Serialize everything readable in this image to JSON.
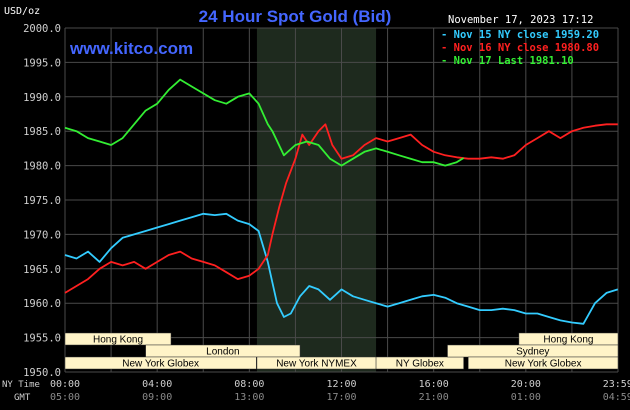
{
  "header": {
    "unit": "USD/oz",
    "title": "24 Hour Spot Gold (Bid)",
    "date": "November 17, 2023 17:12",
    "watermark": "www.kitco.com"
  },
  "axis_labels": {
    "ny_time": "NY Time",
    "gmt": "GMT"
  },
  "sessions": [
    {
      "label": "Hong Kong",
      "row": 0
    },
    {
      "label": "London",
      "row": 1
    },
    {
      "label": "New York Globex",
      "row": 2
    },
    {
      "label": "New York NYMEX",
      "row": 2
    },
    {
      "label": "NY Globex",
      "row": 2
    },
    {
      "label": "Hong Kong",
      "row": 0
    },
    {
      "label": "Sydney",
      "row": 1
    },
    {
      "label": "New York Globex",
      "row": 2
    }
  ],
  "colors": {
    "background": "#000000",
    "grid": "#4a4a4a",
    "nymex_shade": "#1e2a1e",
    "title": "#4466ff",
    "text": "#ffffff",
    "axis_text": "#cfcfcf",
    "session_box": "#fff4c8",
    "session_text": "#000000"
  },
  "chart_data": {
    "type": "line",
    "title": "24 Hour Spot Gold (Bid)",
    "ylabel": "USD/oz",
    "ylim": [
      1950,
      2000
    ],
    "yticks": [
      "2000.0",
      "1995.0",
      "1990.0",
      "1985.0",
      "1980.0",
      "1975.0",
      "1970.0",
      "1965.0",
      "1960.0",
      "1955.0",
      "1950.0"
    ],
    "xlim_hours": [
      0,
      24
    ],
    "xticks_ny": [
      "00:00",
      "04:00",
      "08:00",
      "12:00",
      "16:00",
      "20:00",
      "23:59"
    ],
    "xticks_gmt": [
      "05:00",
      "09:00",
      "13:00",
      "17:00",
      "21:00",
      "01:00",
      "04:59"
    ],
    "grid": true,
    "legend_position": "top-right",
    "series": [
      {
        "name": "Nov 15 NY close 1959.20",
        "color": "#33ccff",
        "x": [
          0,
          0.5,
          1.0,
          1.5,
          2.0,
          2.5,
          3.0,
          3.5,
          4.0,
          4.5,
          5.0,
          5.5,
          6.0,
          6.5,
          7.0,
          7.5,
          8.0,
          8.4,
          8.8,
          9.0,
          9.2,
          9.5,
          9.8,
          10.2,
          10.6,
          11.0,
          11.5,
          12.0,
          12.5,
          13.0,
          13.5,
          14.0,
          14.5,
          15.0,
          15.5,
          16.0,
          16.5,
          17.0,
          17.5,
          18.0,
          18.5,
          19.0,
          19.5,
          20.0,
          20.5,
          21.0,
          21.5,
          22.0,
          22.5,
          23.0,
          23.5,
          23.99
        ],
        "y": [
          1967.0,
          1966.5,
          1967.5,
          1966.0,
          1968.0,
          1969.5,
          1970.0,
          1970.5,
          1971.0,
          1971.5,
          1972.0,
          1972.5,
          1973.0,
          1972.8,
          1973.0,
          1972.0,
          1971.5,
          1970.5,
          1966.0,
          1963.0,
          1960.0,
          1958.0,
          1958.5,
          1961.0,
          1962.5,
          1962.0,
          1960.5,
          1962.0,
          1961.0,
          1960.5,
          1960.0,
          1959.5,
          1960.0,
          1960.5,
          1961.0,
          1961.2,
          1960.8,
          1960.0,
          1959.5,
          1959.0,
          1959.0,
          1959.2,
          1959.0,
          1958.5,
          1958.5,
          1958.0,
          1957.5,
          1957.2,
          1957.0,
          1960.0,
          1961.5,
          1962.0
        ]
      },
      {
        "name": "Nov 16 NY close 1980.80",
        "color": "#ff2020",
        "x": [
          0,
          0.5,
          1.0,
          1.5,
          2.0,
          2.5,
          3.0,
          3.5,
          4.0,
          4.5,
          5.0,
          5.5,
          6.0,
          6.5,
          7.0,
          7.5,
          8.0,
          8.4,
          8.8,
          9.0,
          9.3,
          9.6,
          10.0,
          10.3,
          10.6,
          11.0,
          11.3,
          11.6,
          12.0,
          12.5,
          13.0,
          13.5,
          14.0,
          14.5,
          15.0,
          15.5,
          16.0,
          16.5,
          17.0,
          17.5,
          18.0,
          18.5,
          19.0,
          19.5,
          20.0,
          20.5,
          21.0,
          21.5,
          22.0,
          22.5,
          23.0,
          23.5,
          23.99
        ],
        "y": [
          1961.5,
          1962.5,
          1963.5,
          1965.0,
          1966.0,
          1965.5,
          1966.0,
          1965.0,
          1966.0,
          1967.0,
          1967.5,
          1966.5,
          1966.0,
          1965.5,
          1964.5,
          1963.5,
          1964.0,
          1965.0,
          1967.0,
          1970.0,
          1974.0,
          1977.5,
          1981.0,
          1984.5,
          1983.0,
          1985.0,
          1986.0,
          1983.0,
          1981.0,
          1981.5,
          1983.0,
          1984.0,
          1983.5,
          1984.0,
          1984.5,
          1983.0,
          1982.0,
          1981.5,
          1981.2,
          1981.0,
          1981.0,
          1981.2,
          1981.0,
          1981.5,
          1983.0,
          1984.0,
          1985.0,
          1984.0,
          1985.0,
          1985.5,
          1985.8,
          1986.0,
          1986.0
        ]
      },
      {
        "name": "Nov 17 Last 1981.10",
        "color": "#33ee33",
        "x": [
          0,
          0.5,
          1.0,
          1.5,
          2.0,
          2.5,
          3.0,
          3.5,
          4.0,
          4.5,
          5.0,
          5.5,
          6.0,
          6.5,
          7.0,
          7.5,
          8.0,
          8.4,
          8.8,
          9.0,
          9.5,
          10.0,
          10.5,
          11.0,
          11.5,
          12.0,
          12.5,
          13.0,
          13.5,
          14.0,
          14.5,
          15.0,
          15.5,
          16.0,
          16.5,
          17.0,
          17.3
        ],
        "y": [
          1985.5,
          1985.0,
          1984.0,
          1983.5,
          1983.0,
          1984.0,
          1986.0,
          1988.0,
          1989.0,
          1991.0,
          1992.5,
          1991.5,
          1990.5,
          1989.5,
          1989.0,
          1990.0,
          1990.5,
          1989.0,
          1986.0,
          1985.0,
          1981.5,
          1983.0,
          1983.5,
          1983.0,
          1981.0,
          1980.0,
          1981.0,
          1982.0,
          1982.5,
          1982.0,
          1981.5,
          1981.0,
          1980.5,
          1980.5,
          1980.0,
          1980.5,
          1981.1
        ]
      }
    ]
  }
}
